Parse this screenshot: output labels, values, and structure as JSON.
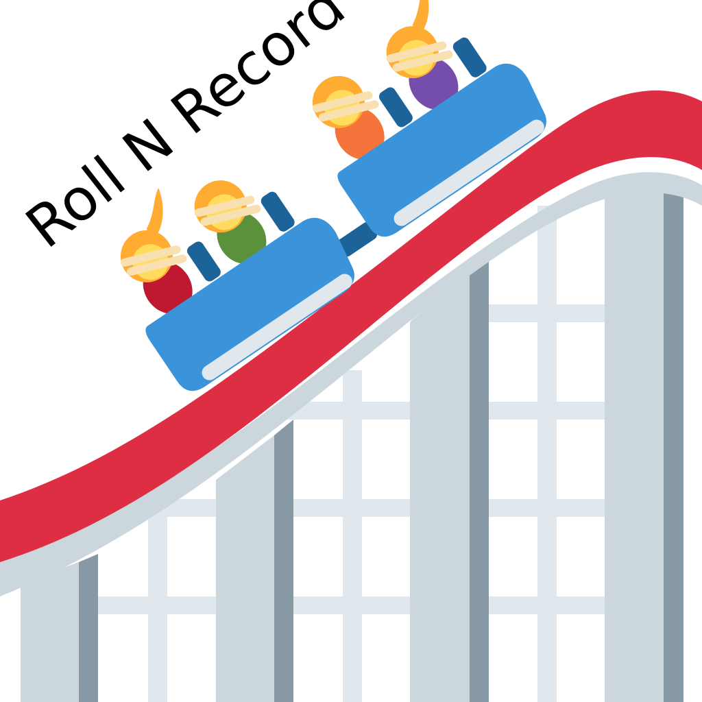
{
  "logo": {
    "text": "Roll N Record"
  },
  "colors": {
    "background": "#ffffff",
    "track_red": "#dd2e44",
    "support_light": "#ccd6dd",
    "support_dark": "#8899a6",
    "lattice": "#e1e8ed",
    "car_blue": "#3b94d9",
    "car_seat": "#1c6399",
    "car_stripe": "#e1e8ed",
    "hair_orange": "#ffac33",
    "skin": "#ffdc5d",
    "arm": "#f8e0b0",
    "shirt_red": "#be1931",
    "shirt_green": "#5c913b",
    "shirt_orange": "#f4743b",
    "shirt_purple": "#744eaa"
  },
  "icons": {
    "scene": "roller-coaster-icon"
  }
}
